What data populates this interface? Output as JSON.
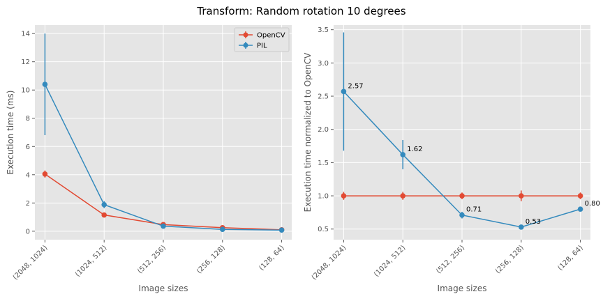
{
  "figure": {
    "title": "Transform: Random rotation 10 degrees"
  },
  "colors": {
    "OpenCV": "#E24A33",
    "PIL": "#348ABD",
    "plot_background": "#E5E5E5",
    "grid": "#FFFFFF"
  },
  "chart_data": [
    {
      "type": "line",
      "title": "",
      "xlabel": "Image sizes",
      "ylabel": "Execution time (ms)",
      "categories": [
        "(2048, 1024)",
        "(1024, 512)",
        "(512, 256)",
        "(256, 128)",
        "(128, 64)"
      ],
      "ylim": [
        -0.6,
        14.6
      ],
      "yticks": [
        0,
        2,
        4,
        6,
        8,
        10,
        12,
        14
      ],
      "yticks_labels": [
        "0",
        "2",
        "4",
        "6",
        "8",
        "10",
        "12",
        "14"
      ],
      "grid": true,
      "legend_position": "top-right",
      "error_bars": true,
      "series": [
        {
          "name": "OpenCV",
          "values": [
            4.05,
            1.15,
            0.47,
            0.25,
            0.1
          ],
          "errors": [
            0.25,
            0.08,
            0.04,
            0.03,
            0.02
          ]
        },
        {
          "name": "PIL",
          "values": [
            10.4,
            1.88,
            0.36,
            0.13,
            0.08
          ],
          "errors": [
            3.6,
            0.25,
            0.08,
            0.04,
            0.02
          ]
        }
      ]
    },
    {
      "type": "line",
      "title": "",
      "xlabel": "Image sizes",
      "ylabel": "Execution time normalized to OpenCV",
      "categories": [
        "(2048, 1024)",
        "(1024, 512)",
        "(512, 256)",
        "(256, 128)",
        "(128, 64)"
      ],
      "ylim": [
        0.34,
        3.57
      ],
      "yticks": [
        0.5,
        1.0,
        1.5,
        2.0,
        2.5,
        3.0,
        3.5
      ],
      "yticks_labels": [
        "0.5",
        "1.0",
        "1.5",
        "2.0",
        "2.5",
        "3.0",
        "3.5"
      ],
      "grid": true,
      "error_bars": true,
      "series": [
        {
          "name": "OpenCV",
          "values": [
            1.0,
            1.0,
            1.0,
            1.0,
            1.0
          ],
          "errors": [
            0.06,
            0.06,
            0.05,
            0.08,
            0.05
          ]
        },
        {
          "name": "PIL",
          "values": [
            2.57,
            1.62,
            0.71,
            0.53,
            0.8
          ],
          "errors": [
            0.89,
            0.22,
            0.05,
            0.01,
            0.02
          ],
          "data_labels": [
            "2.57",
            "1.62",
            "0.71",
            "0.53",
            "0.80"
          ]
        }
      ]
    }
  ]
}
